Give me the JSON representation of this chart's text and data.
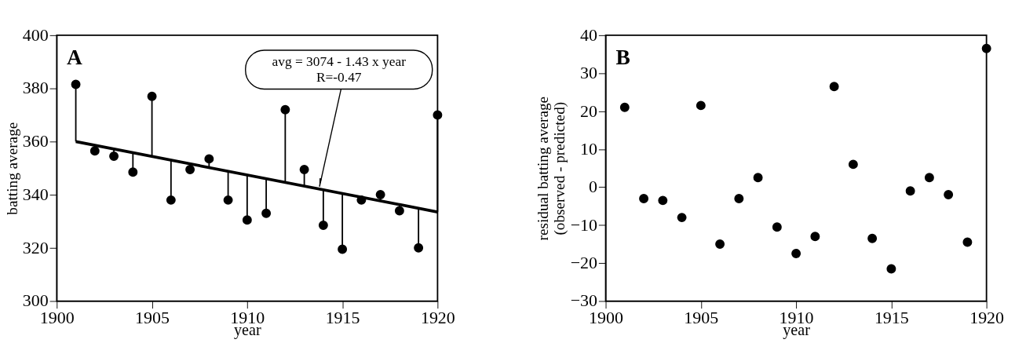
{
  "chart_data": [
    {
      "type": "scatter",
      "xlabel": "year",
      "ylabel": "batting average",
      "xlim": [
        1900,
        1920
      ],
      "xticks": [
        1900,
        1905,
        1910,
        1915,
        1920
      ],
      "ylim": [
        300,
        400
      ],
      "yticks": [
        300,
        320,
        340,
        360,
        380,
        400
      ],
      "grid": false,
      "x": [
        1901,
        1902,
        1903,
        1904,
        1905,
        1906,
        1907,
        1908,
        1909,
        1910,
        1911,
        1912,
        1913,
        1914,
        1915,
        1916,
        1917,
        1918,
        1919,
        1920
      ],
      "series": [
        {
          "marker": "circle",
          "color": "#000000",
          "values": [
            381.5,
            356.5,
            354.5,
            348.5,
            377,
            338,
            349.5,
            353.5,
            338,
            330.5,
            333,
            372,
            349.5,
            328.5,
            319.5,
            338,
            340,
            334,
            320,
            370
          ],
          "errors": [
            [
              360,
              381.5
            ],
            [
              356.5,
              358.6
            ],
            [
              354.5,
              357.2
            ],
            [
              348.5,
              355.8
            ],
            [
              354.4,
              377
            ],
            [
              338,
              353
            ],
            [
              349.5,
              351.6
            ],
            [
              350.2,
              353.5
            ],
            [
              338,
              348.8
            ],
            [
              330.5,
              347.4
            ],
            [
              333,
              346.1
            ],
            [
              344.7,
              372
            ],
            [
              343.3,
              349.5
            ],
            [
              328.5,
              341.9
            ],
            [
              319.5,
              340.5
            ],
            [
              338,
              339.1
            ],
            [
              337.7,
              340
            ],
            [
              334,
              336.3
            ],
            [
              320,
              334.9
            ],
            [
              333.5,
              370
            ]
          ]
        },
        {
          "type": "line",
          "color": "#000000",
          "x": [
            1901,
            1920
          ],
          "values": [
            360,
            333.5
          ]
        }
      ],
      "annotations": [
        "A",
        {
          "text": "avg = 3074 - 1.43 x year\nR=-0.47",
          "x": 1913.8,
          "y": 343
        }
      ]
    },
    {
      "type": "scatter",
      "xlabel": "year",
      "ylabel": "residual batting average\n(observed - predicted)",
      "xlim": [
        1900,
        1920
      ],
      "xticks": [
        1900,
        1905,
        1910,
        1915,
        1920
      ],
      "ylim": [
        -30,
        40
      ],
      "yticks": [
        -30,
        -20,
        -10,
        0,
        10,
        20,
        30,
        40
      ],
      "grid": false,
      "marker": "circle",
      "x": [
        1901,
        1902,
        1903,
        1904,
        1905,
        1906,
        1907,
        1908,
        1909,
        1910,
        1911,
        1912,
        1913,
        1914,
        1915,
        1916,
        1917,
        1918,
        1919,
        1920
      ],
      "series": [
        {
          "color": "#000000",
          "values": [
            21,
            -3,
            -3.5,
            -8,
            21.5,
            -15,
            -3,
            2.5,
            -10.5,
            -17.5,
            -13,
            26.5,
            6,
            -13.5,
            -21.5,
            -1,
            2.5,
            -2,
            -14.5,
            36.5
          ]
        }
      ],
      "annotations": [
        "B"
      ]
    }
  ]
}
